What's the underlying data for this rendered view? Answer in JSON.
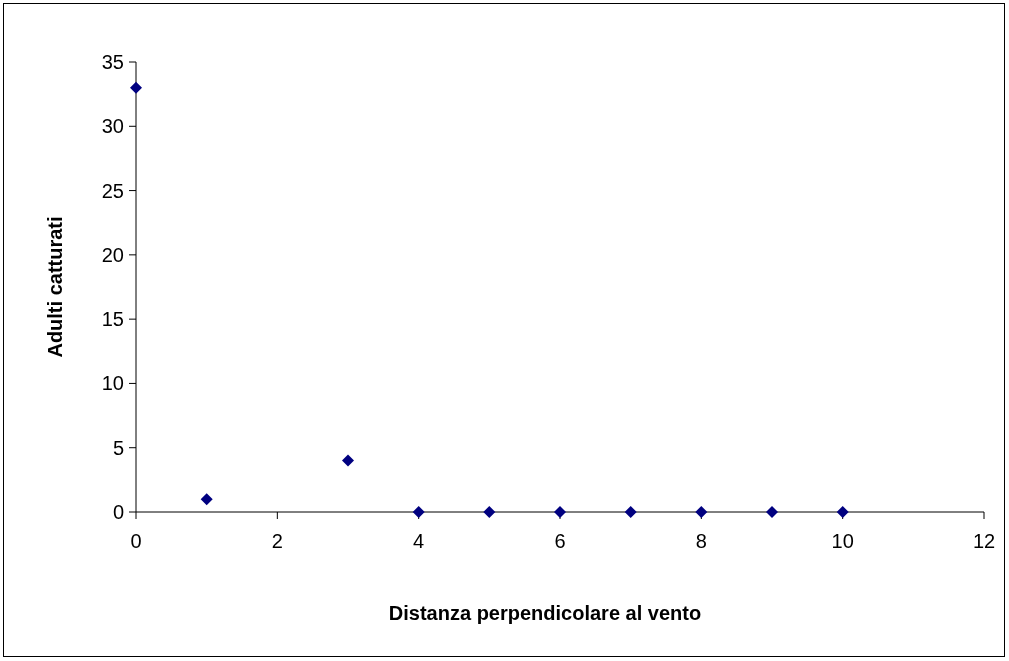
{
  "chart_data": {
    "type": "scatter",
    "xlabel": "Distanza perpendicolare al vento",
    "ylabel": "Adulti catturati",
    "x": [
      0,
      1,
      3,
      4,
      5,
      6,
      7,
      8,
      9,
      10
    ],
    "series": [
      {
        "color": "#000080",
        "values": [
          33,
          1,
          4,
          0,
          0,
          0,
          0,
          0,
          0,
          0
        ]
      }
    ],
    "xlim": [
      0,
      12
    ],
    "xticks": [
      0,
      2,
      4,
      6,
      8,
      10,
      12
    ],
    "ylim": [
      0,
      35
    ],
    "yticks": [
      0,
      5,
      10,
      15,
      20,
      25,
      30,
      35
    ],
    "marker": "diamond",
    "grid": false
  }
}
